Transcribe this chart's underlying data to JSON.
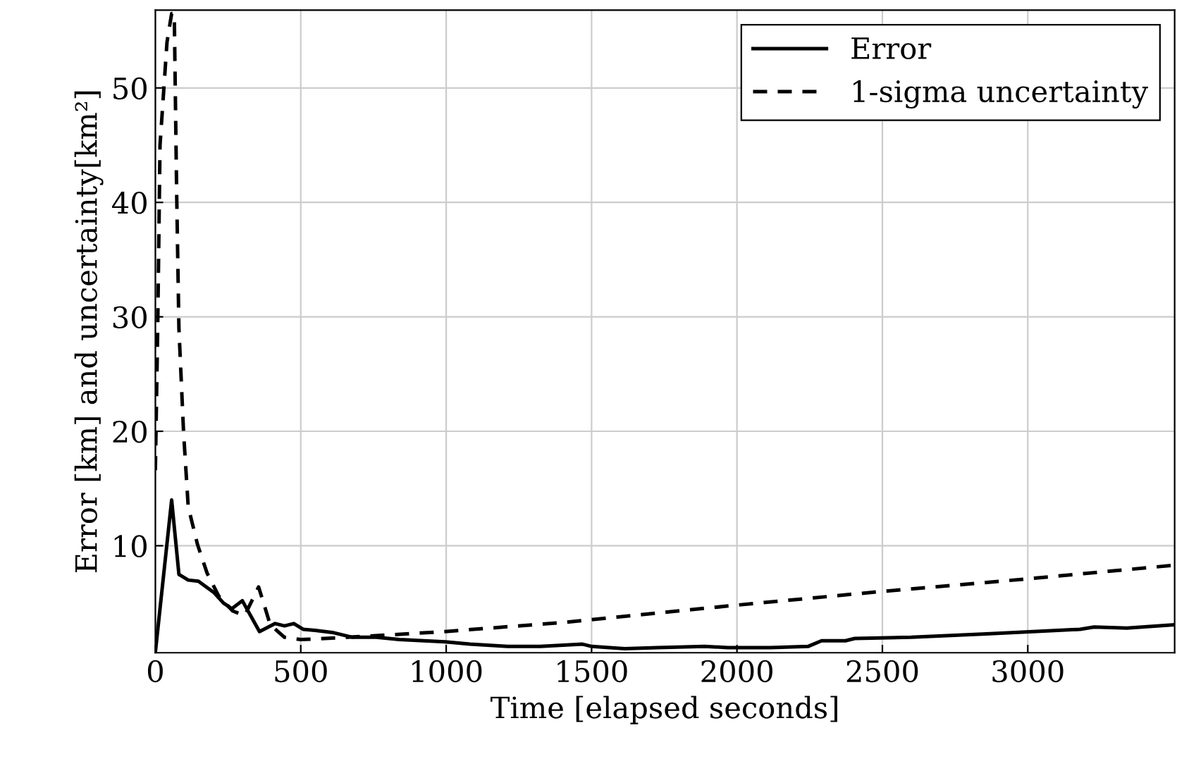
{
  "chart_data": {
    "type": "line",
    "xlabel": "Time [elapsed seconds]",
    "ylabel": "Error [km] and uncertainty[km²]",
    "xlim": [
      0,
      3505
    ],
    "ylim": [
      0.65,
      56.8
    ],
    "xticks": [
      0,
      500,
      1000,
      1500,
      2000,
      2500,
      3000
    ],
    "yticks": [
      10,
      20,
      30,
      40,
      50
    ],
    "grid": true,
    "legend": "top right",
    "marker": "none",
    "series": [
      {
        "name": "Error",
        "color": "#000000",
        "line_style": "solid",
        "x": [
          0,
          56,
          81,
          113,
          148,
          202,
          234,
          263,
          299,
          358,
          412,
          444,
          476,
          508,
          549,
          613,
          678,
          759,
          839,
          996,
          1082,
          1211,
          1324,
          1469,
          1501,
          1614,
          1727,
          1889,
          1969,
          2115,
          2244,
          2291,
          2373,
          2405,
          2599,
          2857,
          3018,
          3180,
          3228,
          3341,
          3505
        ],
        "values": [
          0.7,
          14,
          7.5,
          7.0,
          6.9,
          5.9,
          5.0,
          4.5,
          5.2,
          2.5,
          3.2,
          3.0,
          3.2,
          2.7,
          2.6,
          2.4,
          2.0,
          2.0,
          1.8,
          1.6,
          1.4,
          1.2,
          1.2,
          1.4,
          1.2,
          1.0,
          1.1,
          1.2,
          1.1,
          1.1,
          1.2,
          1.7,
          1.7,
          1.9,
          2.0,
          2.3,
          2.5,
          2.7,
          2.9,
          2.8,
          3.1
        ]
      },
      {
        "name": "1-sigma uncertainty",
        "color": "#000000",
        "line_style": "dashed",
        "x": [
          0,
          8,
          16,
          40,
          56,
          65,
          73,
          81,
          97,
          113,
          145,
          178,
          218,
          266,
          307,
          355,
          395,
          444,
          500,
          662,
          996,
          1404,
          1995,
          2495,
          2996,
          3505
        ],
        "values": [
          16.6,
          28.9,
          45,
          54,
          56.5,
          56.5,
          41.2,
          29,
          19.9,
          13.4,
          10.1,
          7.6,
          5.6,
          4.3,
          3.9,
          6.4,
          3.1,
          2.0,
          1.8,
          2.0,
          2.5,
          3.3,
          4.8,
          6.0,
          7.1,
          8.3
        ]
      }
    ]
  }
}
